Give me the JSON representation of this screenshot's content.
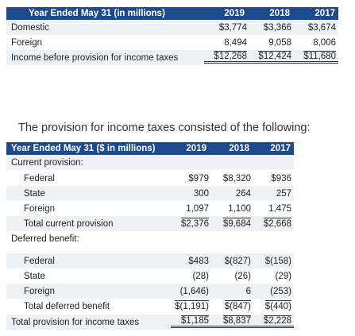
{
  "table1": {
    "header": {
      "label": "Year Ended May 31 (in millions)",
      "y2019": "2019",
      "y2018": "2018",
      "y2017": "2017"
    },
    "rows": [
      {
        "label": "Domestic",
        "y2019": "$3,774",
        "y2018": "$3,366",
        "y2017": "$3,674"
      },
      {
        "label": "Foreign",
        "y2019": "8,494",
        "y2018": "9,058",
        "y2017": "8,006"
      },
      {
        "label": "Income before provision for income taxes",
        "y2019": "$12,268",
        "y2018": "$12,424",
        "y2017": "$11,680"
      }
    ]
  },
  "caption": "The provision for income taxes consisted of the following:",
  "table2": {
    "header": {
      "label": "Year Ended May 31 ($ in millions)",
      "y2019": "2019",
      "y2018": "2018",
      "y2017": "2017"
    },
    "current_heading": "Current provision:",
    "current_rows": [
      {
        "label": "Federal",
        "y2019": "$979",
        "y2018": "$8,320",
        "y2017": "$936"
      },
      {
        "label": "State",
        "y2019": "300",
        "y2018": "264",
        "y2017": "257"
      },
      {
        "label": "Foreign",
        "y2019": "1,097",
        "y2018": "1,100",
        "y2017": "1,475"
      }
    ],
    "current_total": {
      "label": "Total current provision",
      "y2019": "$2,376",
      "y2018": "$9,684",
      "y2017": "$2,668"
    },
    "deferred_heading": "Deferred benefit:",
    "deferred_rows": [
      {
        "label": "Federal",
        "y2019": "$483",
        "y2018": "$(827)",
        "y2017": "$(158)"
      },
      {
        "label": "State",
        "y2019": "(28)",
        "y2018": "(26)",
        "y2017": "(29)"
      },
      {
        "label": "Foreign",
        "y2019": "(1,646)",
        "y2018": "6",
        "y2017": "(253)"
      }
    ],
    "deferred_total": {
      "label": "Total deferred benefit",
      "y2019": "$(1,191)",
      "y2018": "$(847)",
      "y2017": "$(440)"
    },
    "grand_total": {
      "label": "Total provision for income taxes",
      "y2019": "$1,185",
      "y2018": "$8,837",
      "y2017": "$2,228"
    }
  }
}
